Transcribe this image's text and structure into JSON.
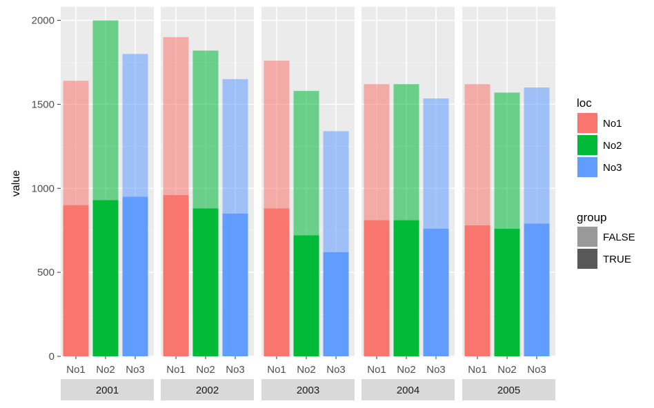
{
  "chart_data": {
    "type": "bar",
    "stacked": true,
    "facet_by": "year",
    "facets": [
      "2001",
      "2002",
      "2003",
      "2004",
      "2005"
    ],
    "categories": [
      "No1",
      "No2",
      "No3"
    ],
    "ylabel": "value",
    "ylim": [
      0,
      2080
    ],
    "yticks": [
      0,
      500,
      1000,
      1500,
      2000
    ],
    "grid": true,
    "series": [
      {
        "name": "TRUE",
        "values": [
          [
            900,
            930,
            950
          ],
          [
            960,
            880,
            850
          ],
          [
            880,
            720,
            620
          ],
          [
            810,
            810,
            760
          ],
          [
            780,
            760,
            790
          ]
        ]
      },
      {
        "name": "FALSE",
        "values": [
          [
            740,
            1070,
            850
          ],
          [
            940,
            940,
            800
          ],
          [
            880,
            860,
            720
          ],
          [
            810,
            810,
            775
          ],
          [
            840,
            810,
            810
          ]
        ]
      }
    ],
    "legend": {
      "position": "right",
      "fill": {
        "title": "loc",
        "items": [
          {
            "label": "No1",
            "color": "#F8766D"
          },
          {
            "label": "No2",
            "color": "#00BA38"
          },
          {
            "label": "No3",
            "color": "#619CFF"
          }
        ]
      },
      "alpha": {
        "title": "group",
        "items": [
          {
            "label": "FALSE",
            "color": "#999999"
          },
          {
            "label": "TRUE",
            "color": "#595959"
          }
        ]
      }
    }
  }
}
